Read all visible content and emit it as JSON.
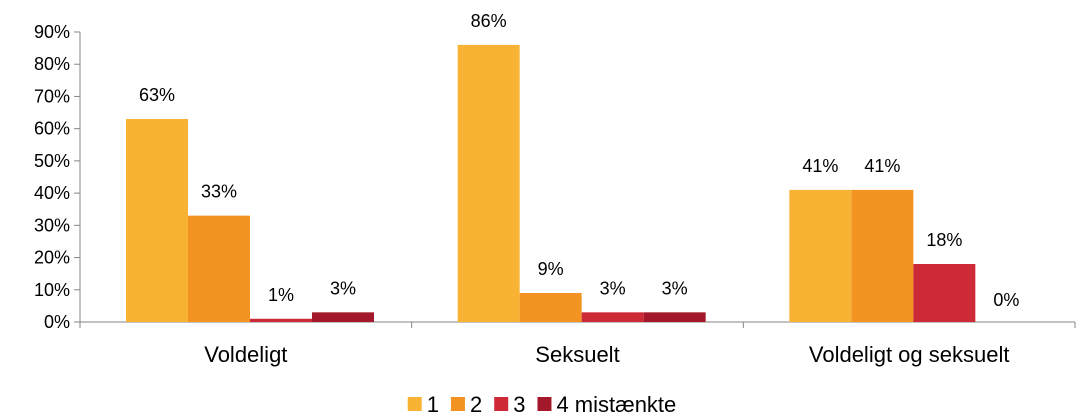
{
  "chart_data": {
    "type": "bar",
    "categories": [
      "Voldeligt",
      "Seksuelt",
      "Voldeligt og seksuelt"
    ],
    "series": [
      {
        "name": "1",
        "values": [
          63,
          86,
          41
        ],
        "labels": [
          "63%",
          "86%",
          "41%"
        ],
        "color": "#F8B334"
      },
      {
        "name": "2",
        "values": [
          33,
          9,
          41
        ],
        "labels": [
          "33%",
          "9%",
          "41%"
        ],
        "color": "#F39322"
      },
      {
        "name": "3",
        "values": [
          1,
          3,
          18
        ],
        "labels": [
          "1%",
          "3%",
          "18%"
        ],
        "color": "#CE2936"
      },
      {
        "name": "4 mistænkte",
        "values": [
          3,
          3,
          0
        ],
        "labels": [
          "3%",
          "3%",
          "0%"
        ],
        "color": "#A3192B"
      }
    ],
    "yticks": [
      "0%",
      "10%",
      "20%",
      "30%",
      "40%",
      "50%",
      "60%",
      "70%",
      "80%",
      "90%"
    ],
    "ylim": [
      0,
      90
    ],
    "grid": false,
    "legend": "bottom"
  }
}
